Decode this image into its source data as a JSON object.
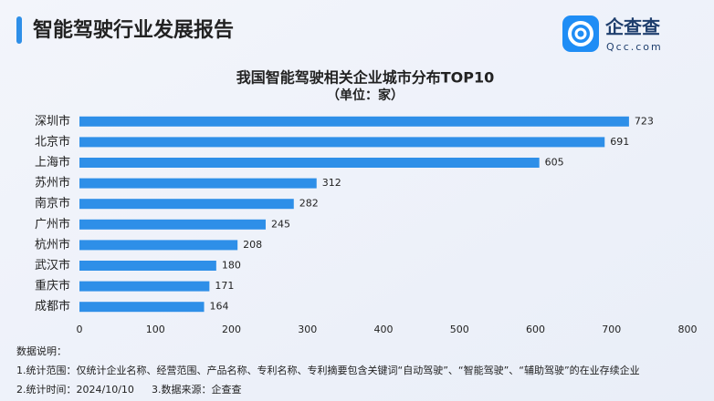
{
  "header": {
    "title": "智能驾驶行业发展报告"
  },
  "logo": {
    "name": "企查查",
    "domain": "Qcc.com"
  },
  "chart_data": {
    "type": "bar",
    "orientation": "horizontal",
    "title": "我国智能驾驶相关企业城市分布TOP10",
    "subtitle": "（单位：家）",
    "categories": [
      "深圳市",
      "北京市",
      "上海市",
      "苏州市",
      "南京市",
      "广州市",
      "杭州市",
      "武汉市",
      "重庆市",
      "成都市"
    ],
    "values": [
      723,
      691,
      605,
      312,
      282,
      245,
      208,
      180,
      171,
      164
    ],
    "color": "#2e8fe8",
    "xlim": [
      0,
      800
    ],
    "xticks": [
      0,
      100,
      200,
      300,
      400,
      500,
      600,
      700,
      800
    ],
    "grid": false
  },
  "notes": {
    "heading": "数据说明：",
    "lines": [
      "1.统计范围：仅统计企业名称、经营范围、产品名称、专利名称、专利摘要包含关键词“自动驾驶”、“智能驾驶”、“辅助驾驶”的在业存续企业",
      "2.统计时间：2024/10/10",
      "3.数据来源：企查查"
    ]
  }
}
